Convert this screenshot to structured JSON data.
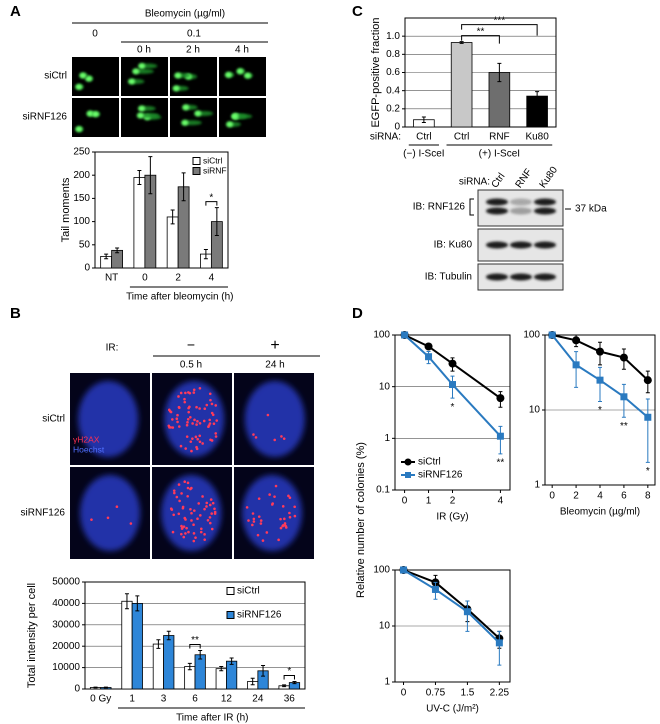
{
  "panel_labels": [
    "A",
    "B",
    "C",
    "D"
  ],
  "panel_a": {
    "treatment": "Bleomycin (µg/ml)",
    "doses": [
      "0",
      "0.1"
    ],
    "times": [
      "0 h",
      "2 h",
      "4 h"
    ],
    "rows": [
      "siCtrl",
      "siRNF126"
    ]
  },
  "panel_b": {
    "treatment": "IR:",
    "conditions": [
      "−",
      "+"
    ],
    "times": [
      "0.5 h",
      "24 h"
    ],
    "rows": [
      "siCtrl",
      "siRNF126"
    ],
    "stain_labels": [
      "γH2AX",
      "Hoechst"
    ]
  },
  "panel_c_blot": {
    "siRNA_label": "siRNA:",
    "lanes": [
      "Ctrl",
      "RNF",
      "Ku80"
    ],
    "blots": [
      "IB: RNF126",
      "IB: Ku80",
      "IB: Tubulin"
    ],
    "marker": "37 kDa"
  },
  "chart_data": [
    {
      "type": "bar",
      "ylabel": "Tail moments",
      "xlabel": "Time after bleomycin (h)",
      "categories": [
        "NT",
        "0",
        "2",
        "4"
      ],
      "series": [
        {
          "name": "siCtrl",
          "color": "#ffffff",
          "values": [
            25,
            195,
            110,
            30
          ],
          "errors": [
            5,
            15,
            15,
            10
          ]
        },
        {
          "name": "siRNF",
          "color": "#7a7a7a",
          "values": [
            38,
            200,
            175,
            100
          ],
          "errors": [
            5,
            40,
            30,
            30
          ]
        }
      ],
      "ylim": [
        0,
        250
      ],
      "yticks": [
        0,
        50,
        100,
        150,
        200,
        250
      ],
      "legend": "upper right",
      "annotations": [
        "*"
      ]
    },
    {
      "type": "bar",
      "ylabel": "EGFP-positive fraction",
      "category_label": "siRNA:",
      "categories": [
        "Ctrl",
        "Ctrl",
        "RNF",
        "Ku80"
      ],
      "groups": [
        "(−) I-SceI",
        "(+) I-SceI"
      ],
      "values": [
        0.08,
        0.93,
        0.6,
        0.34
      ],
      "errors": [
        0.03,
        0.01,
        0.1,
        0.05
      ],
      "colors": [
        "#ffffff",
        "#c8c8c8",
        "#6e6e6e",
        "#000000"
      ],
      "ylim": [
        0,
        1.2
      ],
      "yticks": [
        0,
        0.2,
        0.4,
        0.6,
        0.8,
        {
          "value": 1,
          "label": "1.0"
        }
      ],
      "grid": true,
      "annotations": [
        "**",
        "***"
      ]
    },
    {
      "type": "bar",
      "ylabel": "Total intensity per cell",
      "xlabel": "Time after IR (h)",
      "categories": [
        "0 Gy",
        "1",
        "3",
        "6",
        "12",
        "24",
        "36"
      ],
      "series": [
        {
          "name": "siCtrl",
          "color": "#ffffff",
          "values": [
            700,
            41000,
            21000,
            10500,
            9500,
            3500,
            1500
          ],
          "errors": [
            150,
            3500,
            2000,
            1500,
            1000,
            1500,
            400
          ]
        },
        {
          "name": "siRNF126",
          "color": "#2e86d8",
          "values": [
            700,
            40000,
            25000,
            16000,
            13000,
            8500,
            3000
          ],
          "errors": [
            150,
            3500,
            2000,
            2000,
            1500,
            2500,
            500
          ]
        }
      ],
      "ylim": [
        0,
        50000
      ],
      "yticks": [
        0,
        10000,
        20000,
        30000,
        40000,
        50000
      ],
      "grid": true,
      "legend": "upper right",
      "annotations": [
        "**",
        "*"
      ]
    },
    {
      "type": "line",
      "ylabel": "Relative number of colonies (%)",
      "xlabel": "IR (Gy)",
      "x": [
        0,
        1,
        2,
        4
      ],
      "series": [
        {
          "name": "siCtrl",
          "color": "#000000",
          "marker": "circle",
          "values": [
            100,
            60,
            28,
            6
          ],
          "errors": [
            0,
            8,
            8,
            2
          ]
        },
        {
          "name": "siRNF126",
          "color": "#2a7ac0",
          "marker": "square",
          "values": [
            100,
            38,
            11,
            1.1
          ],
          "errors": [
            0,
            10,
            5,
            0.6
          ]
        }
      ],
      "xlim": [
        -0.4,
        4.4
      ],
      "xticks": [
        0,
        1,
        2,
        4
      ],
      "ylim": [
        0.1,
        100
      ],
      "yticks": [
        0.1,
        1,
        10,
        100
      ],
      "log_y": true,
      "grid": true,
      "legend": "lower left",
      "annotations": [
        "*",
        "**"
      ]
    },
    {
      "type": "line",
      "xlabel": "Bleomycin (µg/ml)",
      "x": [
        0,
        2,
        4,
        6,
        8
      ],
      "series": [
        {
          "color": "#000000",
          "marker": "circle",
          "values": [
            100,
            85,
            60,
            50,
            25
          ],
          "errors": [
            0,
            15,
            20,
            15,
            8
          ]
        },
        {
          "color": "#2a7ac0",
          "marker": "square",
          "values": [
            100,
            40,
            25,
            15,
            8
          ],
          "errors": [
            0,
            20,
            12,
            7,
            6
          ]
        }
      ],
      "xlim": [
        -0.6,
        8.6
      ],
      "xticks": [
        0,
        2,
        4,
        6,
        8
      ],
      "ylim": [
        1,
        100
      ],
      "yticks": [
        1,
        10,
        100
      ],
      "log_y": true,
      "grid": true,
      "annotations": [
        "*",
        "**",
        "*"
      ]
    },
    {
      "type": "line",
      "xlabel": "UV-C (J/m²)",
      "x": [
        0,
        0.75,
        1.5,
        2.25
      ],
      "series": [
        {
          "color": "#000000",
          "marker": "circle",
          "values": [
            100,
            60,
            20,
            6
          ],
          "errors": [
            0,
            20,
            8,
            2
          ]
        },
        {
          "color": "#2a7ac0",
          "marker": "square",
          "values": [
            100,
            45,
            18,
            5
          ],
          "errors": [
            0,
            15,
            10,
            3
          ]
        }
      ],
      "xlim": [
        -0.2,
        2.5
      ],
      "xticks": [
        0,
        0.75,
        1.5,
        2.25
      ],
      "ylim": [
        1,
        100
      ],
      "yticks": [
        1,
        10,
        100
      ],
      "log_y": true,
      "grid": true
    }
  ]
}
